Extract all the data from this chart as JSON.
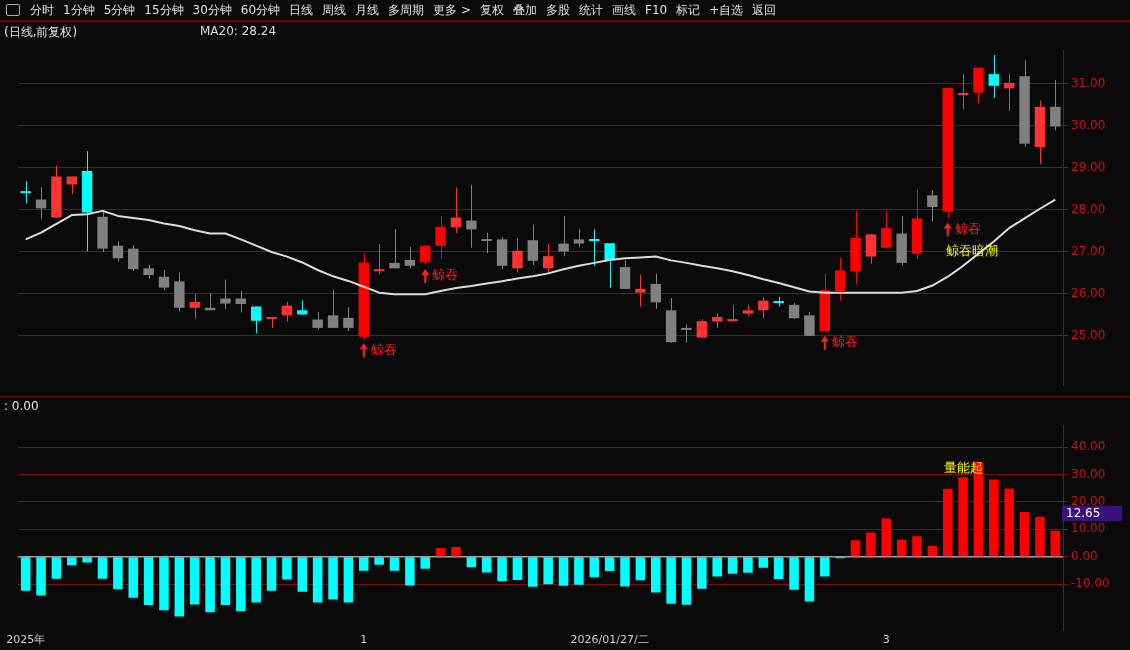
{
  "chart_data": [
    {
      "type": "other",
      "annotations": [
        "分时",
        "1分钟",
        "5分钟",
        "15分钟",
        "30分钟",
        "60分钟",
        "日线",
        "周线",
        "月线",
        "多周期",
        "更多 >",
        "复权",
        "叠加",
        "多股",
        "统计",
        "画线",
        "F10",
        "标记",
        "+自选",
        "返回"
      ]
    },
    {
      "type": "candlestick",
      "title": "(日线,前复权)",
      "legend": "top left",
      "tick_labels": "y",
      "grid": "y",
      "categories": [
        null,
        null,
        null,
        null,
        null,
        null,
        null,
        null,
        null,
        null,
        null,
        null,
        null,
        null,
        null,
        null,
        null,
        null,
        null,
        null,
        null,
        null,
        null,
        null,
        null,
        null,
        null,
        null,
        null,
        null,
        null,
        null,
        null,
        null,
        null,
        null,
        null,
        null,
        null,
        null,
        null,
        null,
        null,
        null,
        null,
        null,
        null,
        null,
        null,
        null,
        null,
        null,
        null,
        null,
        null,
        null,
        null,
        null,
        null,
        null,
        null,
        null,
        null,
        null,
        null,
        null,
        null,
        null
      ],
      "ohlc": [
        [
          28.44,
          28.68,
          28.15,
          28.42
        ],
        [
          28.24,
          28.53,
          27.77,
          28.03
        ],
        [
          27.81,
          29.05,
          27.8,
          28.79
        ],
        [
          28.6,
          28.79,
          28.37,
          28.79
        ],
        [
          28.92,
          29.39,
          27.01,
          27.93
        ],
        [
          27.83,
          27.97,
          26.99,
          27.07
        ],
        [
          27.14,
          27.24,
          26.76,
          26.84
        ],
        [
          27.07,
          27.15,
          26.54,
          26.58
        ],
        [
          26.6,
          26.69,
          26.35,
          26.44
        ],
        [
          26.4,
          26.56,
          26.08,
          26.14
        ],
        [
          26.29,
          26.5,
          25.57,
          25.66
        ],
        [
          25.66,
          25.98,
          25.39,
          25.8
        ],
        [
          25.66,
          26.0,
          25.6,
          25.6
        ],
        [
          25.88,
          26.33,
          25.62,
          25.76
        ],
        [
          25.88,
          26.06,
          25.55,
          25.75
        ],
        [
          25.69,
          25.69,
          25.05,
          25.35
        ],
        [
          25.4,
          25.44,
          25.18,
          25.44
        ],
        [
          25.48,
          25.8,
          25.33,
          25.71
        ],
        [
          25.6,
          25.84,
          25.5,
          25.5
        ],
        [
          25.38,
          25.56,
          25.14,
          25.18
        ],
        [
          25.48,
          26.08,
          25.18,
          25.18
        ],
        [
          25.42,
          25.67,
          25.1,
          25.18
        ],
        [
          24.97,
          26.97,
          24.9,
          26.74
        ],
        [
          26.53,
          27.18,
          26.46,
          26.58
        ],
        [
          26.73,
          27.53,
          26.6,
          26.6
        ],
        [
          26.8,
          27.11,
          26.61,
          26.66
        ],
        [
          26.74,
          27.15,
          26.7,
          27.14
        ],
        [
          27.14,
          27.85,
          26.82,
          27.59
        ],
        [
          27.58,
          28.53,
          27.44,
          27.81
        ],
        [
          27.74,
          28.59,
          27.09,
          27.53
        ],
        [
          27.3,
          27.45,
          26.96,
          27.28
        ],
        [
          27.29,
          27.35,
          26.58,
          26.66
        ],
        [
          26.6,
          27.33,
          26.5,
          27.02
        ],
        [
          27.27,
          27.64,
          26.68,
          26.78
        ],
        [
          26.6,
          27.18,
          26.49,
          26.89
        ],
        [
          27.19,
          27.85,
          26.89,
          27.0
        ],
        [
          27.29,
          27.54,
          27.1,
          27.19
        ],
        [
          27.3,
          27.53,
          26.66,
          27.27
        ],
        [
          27.2,
          27.2,
          26.14,
          26.8
        ],
        [
          26.63,
          26.79,
          26.1,
          26.11
        ],
        [
          26.02,
          26.45,
          25.69,
          26.11
        ],
        [
          26.23,
          26.48,
          25.63,
          25.79
        ],
        [
          25.6,
          25.89,
          24.82,
          24.84
        ],
        [
          25.18,
          25.26,
          24.83,
          25.16
        ],
        [
          24.95,
          25.39,
          24.93,
          25.34
        ],
        [
          25.33,
          25.52,
          25.18,
          25.44
        ],
        [
          25.34,
          25.73,
          25.34,
          25.39
        ],
        [
          25.52,
          25.73,
          25.47,
          25.6
        ],
        [
          25.6,
          25.92,
          25.41,
          25.83
        ],
        [
          25.82,
          25.92,
          25.69,
          25.8
        ],
        [
          25.73,
          25.77,
          25.39,
          25.41
        ],
        [
          25.48,
          25.56,
          24.99,
          24.99
        ],
        [
          25.1,
          26.48,
          25.1,
          26.08
        ],
        [
          26.06,
          26.86,
          25.83,
          26.55
        ],
        [
          26.53,
          27.97,
          26.23,
          27.33
        ],
        [
          26.88,
          27.41,
          26.71,
          27.41
        ],
        [
          27.09,
          27.97,
          27.09,
          27.56
        ],
        [
          27.43,
          27.85,
          26.67,
          26.73
        ],
        [
          26.95,
          28.47,
          26.82,
          27.79
        ],
        [
          28.34,
          28.46,
          27.72,
          28.06
        ],
        [
          27.95,
          30.9,
          27.79,
          30.9
        ],
        [
          30.75,
          31.23,
          30.39,
          30.78
        ],
        [
          30.79,
          31.39,
          30.53,
          31.38
        ],
        [
          31.23,
          31.69,
          30.66,
          30.95
        ],
        [
          30.89,
          31.24,
          30.35,
          31.02
        ],
        [
          31.18,
          31.56,
          29.49,
          29.57
        ],
        [
          29.49,
          30.6,
          29.09,
          30.45
        ],
        [
          30.45,
          31.09,
          29.89,
          29.98
        ]
      ],
      "colors": [
        "#00ffff",
        "#808080",
        "#ff3232",
        "#ff3232",
        "#00ffff",
        "#808080",
        "#808080",
        "#808080",
        "#808080",
        "#808080",
        "#808080",
        "#ff3232",
        "#808080",
        "#808080",
        "#808080",
        "#00ffff",
        "#ff3232",
        "#ff3232",
        "#00ffff",
        "#808080",
        "#808080",
        "#808080",
        "#ff0000",
        "#ff3232",
        "#808080",
        "#808080",
        "#ff0000",
        "#ff0000",
        "#ff3232",
        "#808080",
        "#808080",
        "#808080",
        "#ff3232",
        "#808080",
        "#ff3232",
        "#808080",
        "#808080",
        "#00ffff",
        "#00ffff",
        "#808080",
        "#ff3232",
        "#808080",
        "#808080",
        "#808080",
        "#ff3232",
        "#ff3232",
        "#ff3232",
        "#ff3232",
        "#ff3232",
        "#00ffff",
        "#808080",
        "#808080",
        "#ff0000",
        "#ff0000",
        "#ff0000",
        "#ff3232",
        "#ff0000",
        "#808080",
        "#ff0000",
        "#808080",
        "#ff0000",
        "#ff3232",
        "#ff0000",
        "#00ffff",
        "#ff3232",
        "#808080",
        "#ff3232",
        "#808080"
      ],
      "series": [
        {
          "type": "line",
          "name": "MA20: 28.24",
          "color": "#dcdcdc",
          "values": [
            27.29,
            27.45,
            27.66,
            27.87,
            27.89,
            27.97,
            27.85,
            27.8,
            27.75,
            27.67,
            27.61,
            27.51,
            27.43,
            27.43,
            27.29,
            27.14,
            26.99,
            26.88,
            26.74,
            26.56,
            26.41,
            26.3,
            26.16,
            26.02,
            25.98,
            25.98,
            25.98,
            26.06,
            26.13,
            26.18,
            26.24,
            26.29,
            26.36,
            26.41,
            26.48,
            26.58,
            26.66,
            26.73,
            26.8,
            26.84,
            26.86,
            26.88,
            26.79,
            26.73,
            26.66,
            26.6,
            26.53,
            26.44,
            26.34,
            26.25,
            26.15,
            26.05,
            26.02,
            26.02,
            26.02,
            26.02,
            26.02,
            26.02,
            26.06,
            26.19,
            26.4,
            26.66,
            26.95,
            27.24,
            27.56,
            27.79,
            28.02,
            28.24
          ]
        }
      ],
      "ylim": [
        23.8,
        31.8
      ],
      "yticks": [
        {
          "value": 25,
          "label": "25.00"
        },
        {
          "value": 26,
          "label": "26.00"
        },
        {
          "value": 27,
          "label": "27.00"
        },
        {
          "value": 28,
          "label": "28.00"
        },
        {
          "value": 29,
          "label": "29.00"
        },
        {
          "value": 30,
          "label": "30.00"
        },
        {
          "value": 31,
          "label": "31.00"
        }
      ],
      "annotations": [
        "鲸吞",
        "鲸吞",
        "鲸吞",
        "鲸吞",
        "鲸吞暗潮"
      ]
    },
    {
      "type": "bar",
      "title": ": 0.00",
      "grid": "y",
      "categories": [
        "2025年",
        null,
        null,
        null,
        null,
        null,
        null,
        null,
        null,
        null,
        null,
        null,
        null,
        null,
        null,
        null,
        null,
        null,
        null,
        null,
        null,
        null,
        "1",
        null,
        null,
        null,
        null,
        null,
        null,
        null,
        null,
        null,
        null,
        null,
        null,
        null,
        null,
        null,
        "2026/01/27/二",
        null,
        null,
        null,
        null,
        null,
        null,
        null,
        null,
        null,
        null,
        null,
        null,
        null,
        null,
        null,
        null,
        null,
        "3",
        null,
        null,
        null,
        null,
        null,
        null,
        null,
        null,
        null,
        null,
        null
      ],
      "values": [
        -12.4,
        -14.1,
        -8.0,
        -3.1,
        -2.1,
        -8.0,
        -11.8,
        -14.9,
        -17.6,
        -19.5,
        -21.8,
        -17.4,
        -20.2,
        -17.6,
        -19.9,
        -16.7,
        -12.4,
        -8.3,
        -12.8,
        -16.7,
        -15.6,
        -16.7,
        -5.1,
        -2.9,
        -5.1,
        -10.5,
        -4.4,
        3.2,
        3.6,
        -3.8,
        -5.7,
        -8.9,
        -8.5,
        -10.9,
        -10.0,
        -10.6,
        -10.2,
        -7.5,
        -5.2,
        -10.8,
        -8.6,
        -13.0,
        -17.1,
        -17.5,
        -11.7,
        -7.2,
        -6.2,
        -5.8,
        -4.0,
        -8.1,
        -12.0,
        -16.3,
        -7.2,
        -0.5,
        6.0,
        8.9,
        14.0,
        6.2,
        7.5,
        4.0,
        24.8,
        29.0,
        34.6,
        28.2,
        24.9,
        16.3,
        14.6,
        9.5
      ],
      "colors": [
        "#00ffff",
        "#00ffff",
        "#00ffff",
        "#00ffff",
        "#00ffff",
        "#00ffff",
        "#00ffff",
        "#00ffff",
        "#00ffff",
        "#00ffff",
        "#00ffff",
        "#00ffff",
        "#00ffff",
        "#00ffff",
        "#00ffff",
        "#00ffff",
        "#00ffff",
        "#00ffff",
        "#00ffff",
        "#00ffff",
        "#00ffff",
        "#00ffff",
        "#00ffff",
        "#00ffff",
        "#00ffff",
        "#00ffff",
        "#00ffff",
        "#ff0000",
        "#ff0000",
        "#00ffff",
        "#00ffff",
        "#00ffff",
        "#00ffff",
        "#00ffff",
        "#00ffff",
        "#00ffff",
        "#00ffff",
        "#00ffff",
        "#00ffff",
        "#00ffff",
        "#00ffff",
        "#00ffff",
        "#00ffff",
        "#00ffff",
        "#00ffff",
        "#00ffff",
        "#00ffff",
        "#00ffff",
        "#00ffff",
        "#00ffff",
        "#00ffff",
        "#00ffff",
        "#00ffff",
        "#00ffff",
        "#ff0000",
        "#ff0000",
        "#ff0000",
        "#ff0000",
        "#ff0000",
        "#ff0000",
        "#ff0000",
        "#ff0000",
        "#ff0000",
        "#ff0000",
        "#ff0000",
        "#ff0000",
        "#ff0000",
        "#ff0000"
      ],
      "ylim": [
        -27,
        48
      ],
      "yticks": [
        {
          "value": -10,
          "label": "-10.00"
        },
        {
          "value": 0,
          "label": "0.00"
        },
        {
          "value": 10,
          "label": "10.00"
        },
        {
          "value": 20,
          "label": "20.00"
        },
        {
          "value": 30,
          "label": "30.00"
        },
        {
          "value": 40,
          "label": "40.00"
        }
      ],
      "ref_lines": [
        {
          "axis": "y",
          "value": 0,
          "color": "#a0a0a0"
        }
      ],
      "annotations": [
        "量能起",
        "12.65"
      ]
    }
  ]
}
